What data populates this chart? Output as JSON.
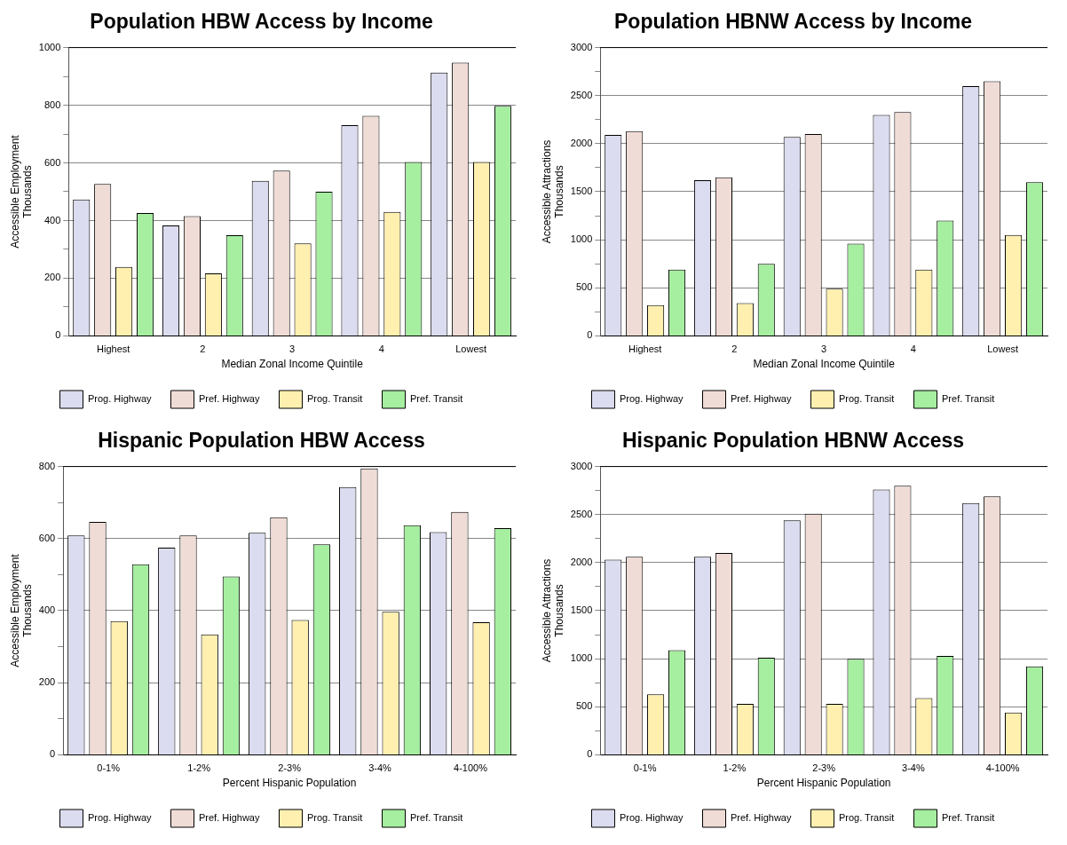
{
  "chart_data": [
    {
      "type": "bar",
      "title": "Population HBW Access by Income",
      "xlabel": "Median Zonal Income Quintile",
      "ylabel": "Accessible Employment\nThousands",
      "categories": [
        "Highest",
        "2",
        "3",
        "4",
        "Lowest"
      ],
      "ylim": [
        0,
        1000
      ],
      "yticks": [
        0,
        {
          "value": 100,
          "label": null
        },
        200,
        {
          "value": 300,
          "label": null
        },
        400,
        {
          "value": 500,
          "label": null
        },
        600,
        {
          "value": 700,
          "label": null
        },
        800,
        {
          "value": 900,
          "label": null
        },
        1000
      ],
      "grid": "y",
      "legend": "bottom",
      "series": [
        {
          "name": "Prog. Highway",
          "color": "#dcdcf0",
          "values": [
            473,
            383,
            538,
            731,
            913
          ]
        },
        {
          "name": "Pref. Highway",
          "color": "#f0dcd6",
          "values": [
            527,
            415,
            573,
            763,
            948
          ]
        },
        {
          "name": "Prog. Transit",
          "color": "#fff0b0",
          "values": [
            239,
            217,
            321,
            430,
            603
          ]
        },
        {
          "name": "Pref. Transit",
          "color": "#a6eea0",
          "values": [
            426,
            349,
            500,
            603,
            798
          ]
        }
      ]
    },
    {
      "type": "bar",
      "title": "Population HBNW Access by Income",
      "xlabel": "Median Zonal Income Quintile",
      "ylabel": "Accessible Attractions\nThousands",
      "categories": [
        "Highest",
        "2",
        "3",
        "4",
        "Lowest"
      ],
      "ylim": [
        0,
        3000
      ],
      "yticks": [
        0,
        {
          "value": 250,
          "label": null
        },
        500,
        {
          "value": 750,
          "label": null
        },
        1000,
        {
          "value": 1250,
          "label": null
        },
        1500,
        {
          "value": 1750,
          "label": null
        },
        2000,
        {
          "value": 2250,
          "label": null
        },
        2500,
        {
          "value": 2750,
          "label": null
        },
        3000
      ],
      "grid": "y",
      "legend": "bottom",
      "series": [
        {
          "name": "Prog. Highway",
          "color": "#dcdcf0",
          "values": [
            2090,
            1620,
            2070,
            2300,
            2600
          ]
        },
        {
          "name": "Pref. Highway",
          "color": "#f0dcd6",
          "values": [
            2130,
            1650,
            2100,
            2330,
            2650
          ]
        },
        {
          "name": "Prog. Transit",
          "color": "#fff0b0",
          "values": [
            320,
            340,
            490,
            690,
            1050
          ]
        },
        {
          "name": "Pref. Transit",
          "color": "#a6eea0",
          "values": [
            690,
            750,
            960,
            1200,
            1600
          ]
        }
      ]
    },
    {
      "type": "bar",
      "title": "Hispanic Population HBW Access",
      "xlabel": "Percent Hispanic Population",
      "ylabel": "Accessible Employment\nThousands",
      "categories": [
        "0-1%",
        "1-2%",
        "2-3%",
        "3-4%",
        "4-100%"
      ],
      "ylim": [
        0,
        800
      ],
      "yticks": [
        0,
        {
          "value": 100,
          "label": null
        },
        200,
        {
          "value": 300,
          "label": null
        },
        400,
        {
          "value": 500,
          "label": null
        },
        600,
        {
          "value": 700,
          "label": null
        },
        800
      ],
      "grid": "y",
      "legend": "bottom",
      "series": [
        {
          "name": "Prog. Highway",
          "color": "#dcdcf0",
          "values": [
            609,
            575,
            616,
            743,
            618
          ]
        },
        {
          "name": "Pref. Highway",
          "color": "#f0dcd6",
          "values": [
            646,
            609,
            659,
            795,
            674
          ]
        },
        {
          "name": "Prog. Transit",
          "color": "#fff0b0",
          "values": [
            371,
            334,
            374,
            397,
            368
          ]
        },
        {
          "name": "Pref. Transit",
          "color": "#a6eea0",
          "values": [
            529,
            495,
            584,
            637,
            629
          ]
        }
      ]
    },
    {
      "type": "bar",
      "title": "Hispanic Population HBNW Access",
      "xlabel": "Percent Hispanic Population",
      "ylabel": "Accessible Attractions\nThousands",
      "categories": [
        "0-1%",
        "1-2%",
        "2-3%",
        "3-4%",
        "4-100%"
      ],
      "ylim": [
        0,
        3000
      ],
      "yticks": [
        0,
        {
          "value": 250,
          "label": null
        },
        500,
        {
          "value": 750,
          "label": null
        },
        1000,
        {
          "value": 1250,
          "label": null
        },
        1500,
        {
          "value": 1750,
          "label": null
        },
        2000,
        {
          "value": 2250,
          "label": null
        },
        2500,
        {
          "value": 2750,
          "label": null
        },
        3000
      ],
      "grid": "y",
      "legend": "bottom",
      "series": [
        {
          "name": "Prog. Highway",
          "color": "#dcdcf0",
          "values": [
            2030,
            2060,
            2440,
            2760,
            2620
          ]
        },
        {
          "name": "Pref. Highway",
          "color": "#f0dcd6",
          "values": [
            2060,
            2100,
            2510,
            2800,
            2690
          ]
        },
        {
          "name": "Prog. Transit",
          "color": "#fff0b0",
          "values": [
            630,
            530,
            530,
            590,
            440
          ]
        },
        {
          "name": "Pref. Transit",
          "color": "#a6eea0",
          "values": [
            1090,
            1010,
            1000,
            1030,
            920
          ]
        }
      ]
    }
  ]
}
